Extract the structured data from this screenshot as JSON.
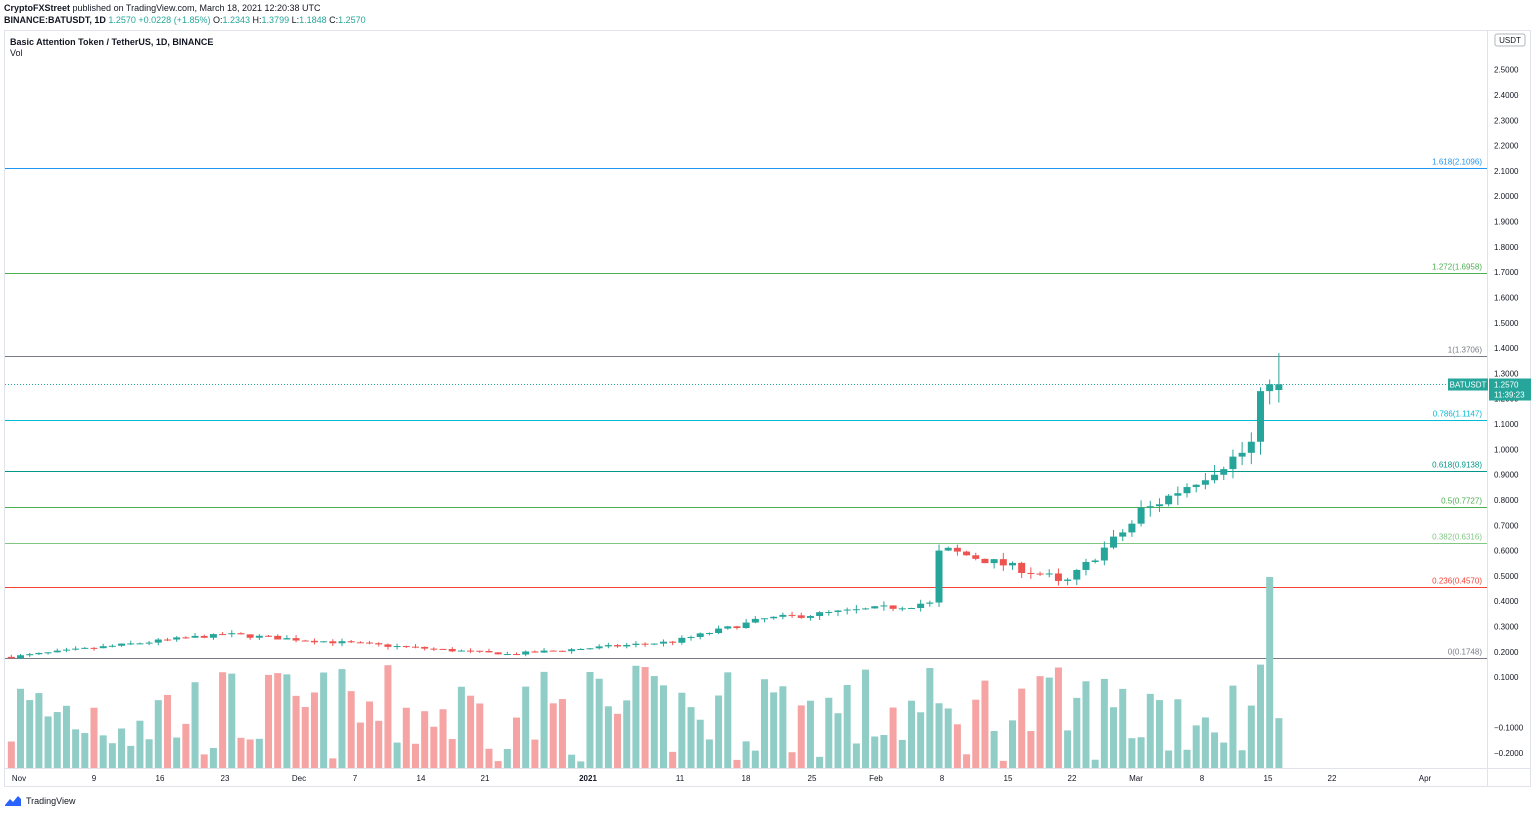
{
  "header": {
    "publisher": "CryptoFXStreet",
    "published_text": "published on TradingView.com, March 18, 2021 12:20:38 UTC",
    "symbol": "BINANCE:BATUSDT, 1D",
    "last": "1.2570",
    "change": "+0.0228 (+1.85%)",
    "o_label": "O:",
    "o": "1.2343",
    "h_label": "H:",
    "h": "1.3799",
    "l_label": "L:",
    "l": "1.1848",
    "c_label": "C:",
    "c": "1.2570"
  },
  "legend": {
    "title": "Basic Attention Token / TetherUS, 1D, BINANCE",
    "vol": "Vol"
  },
  "footer": {
    "brand": "TradingView"
  },
  "colors": {
    "up": "#26a69a",
    "down": "#ef5350",
    "vol_up": "#8fcdc6",
    "vol_down": "#f5a3a3"
  },
  "chart_data": {
    "type": "candlestick",
    "currency_label": "USDT",
    "y_range": [
      -0.29,
      2.55
    ],
    "y_ticks": [
      "2.5000",
      "2.4000",
      "2.3000",
      "2.2000",
      "2.1000",
      "2.0000",
      "1.9000",
      "1.8000",
      "1.7000",
      "1.6000",
      "1.5000",
      "1.4000",
      "1.3000",
      "1.2000",
      "1.1000",
      "1.0000",
      "0.9000",
      "0.8000",
      "0.7000",
      "0.6000",
      "0.5000",
      "0.4000",
      "0.3000",
      "0.2000",
      "0.1000",
      "−0.1000",
      "−0.2000"
    ],
    "x_ticks": [
      "Nov",
      "9",
      "16",
      "23",
      "Dec",
      "7",
      "14",
      "21",
      "2021",
      "11",
      "18",
      "25",
      "Feb",
      "8",
      "15",
      "22",
      "Mar",
      "8",
      "15",
      "22",
      "Apr"
    ],
    "price_tag": {
      "symbol": "BATUSDT",
      "value": "1.2570",
      "countdown": "11:39:23"
    },
    "fib_levels": [
      {
        "label": "1.618(2.1096)",
        "value": 2.1096,
        "color": "#2196f3"
      },
      {
        "label": "1.272(1.6958)",
        "value": 1.6958,
        "color": "#4caf50"
      },
      {
        "label": "1(1.3706)",
        "value": 1.3706,
        "color": "#787b86"
      },
      {
        "label": "0.786(1.1147)",
        "value": 1.1147,
        "color": "#00bcd4"
      },
      {
        "label": "0.618(0.9138)",
        "value": 0.9138,
        "color": "#009688"
      },
      {
        "label": "0.5(0.7727)",
        "value": 0.7727,
        "color": "#4caf50"
      },
      {
        "label": "0.382(0.6316)",
        "value": 0.6316,
        "color": "#81c784"
      },
      {
        "label": "0.236(0.4570)",
        "value": 0.457,
        "color": "#f44336"
      },
      {
        "label": "0(0.1748)",
        "value": 0.1748,
        "color": "#787b86"
      }
    ],
    "key_candles": [
      {
        "date": "2020-10-31",
        "close": 0.18
      },
      {
        "date": "2020-11-23",
        "close": 0.27
      },
      {
        "date": "2020-12-24",
        "close": 0.19
      },
      {
        "date": "2021-01-11",
        "close": 0.24
      },
      {
        "date": "2021-01-21",
        "close": 0.33
      },
      {
        "date": "2021-02-08",
        "close": 0.39
      },
      {
        "date": "2021-02-10",
        "close": 0.6
      },
      {
        "date": "2021-02-23",
        "close": 0.48
      },
      {
        "date": "2021-03-04",
        "close": 0.77
      },
      {
        "date": "2021-03-16",
        "close": 1.03
      },
      {
        "date": "2021-03-17",
        "close": 1.23
      },
      {
        "date": "2021-03-18",
        "open": 1.2343,
        "high": 1.3799,
        "low": 1.1848,
        "close": 1.257
      }
    ],
    "volume_axis": "separate pane, bottom",
    "grid": false
  }
}
